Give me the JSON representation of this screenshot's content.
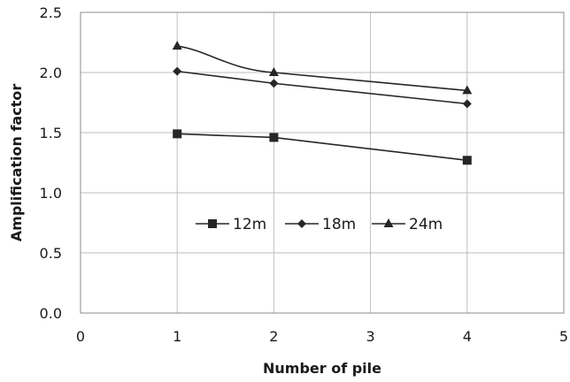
{
  "chart_data": {
    "type": "line",
    "xlabel": "Number of pile",
    "ylabel": "Amplification factor",
    "xlim": [
      0,
      5
    ],
    "ylim": [
      0,
      2.5
    ],
    "x_ticks": [
      "0",
      "1",
      "2",
      "3",
      "4",
      "5"
    ],
    "y_ticks": [
      "0.0",
      "0.5",
      "1.0",
      "1.5",
      "2.0",
      "2.5"
    ],
    "grid": true,
    "legend_position": "center",
    "series": [
      {
        "name": "12m",
        "marker": "square",
        "x": [
          1,
          2,
          4
        ],
        "y": [
          1.49,
          1.46,
          1.27
        ]
      },
      {
        "name": "18m",
        "marker": "diamond",
        "x": [
          1,
          2,
          4
        ],
        "y": [
          2.01,
          1.91,
          1.74
        ]
      },
      {
        "name": "24m",
        "marker": "triangle",
        "x": [
          1,
          2,
          4
        ],
        "y": [
          2.22,
          2.0,
          1.85
        ]
      }
    ]
  }
}
